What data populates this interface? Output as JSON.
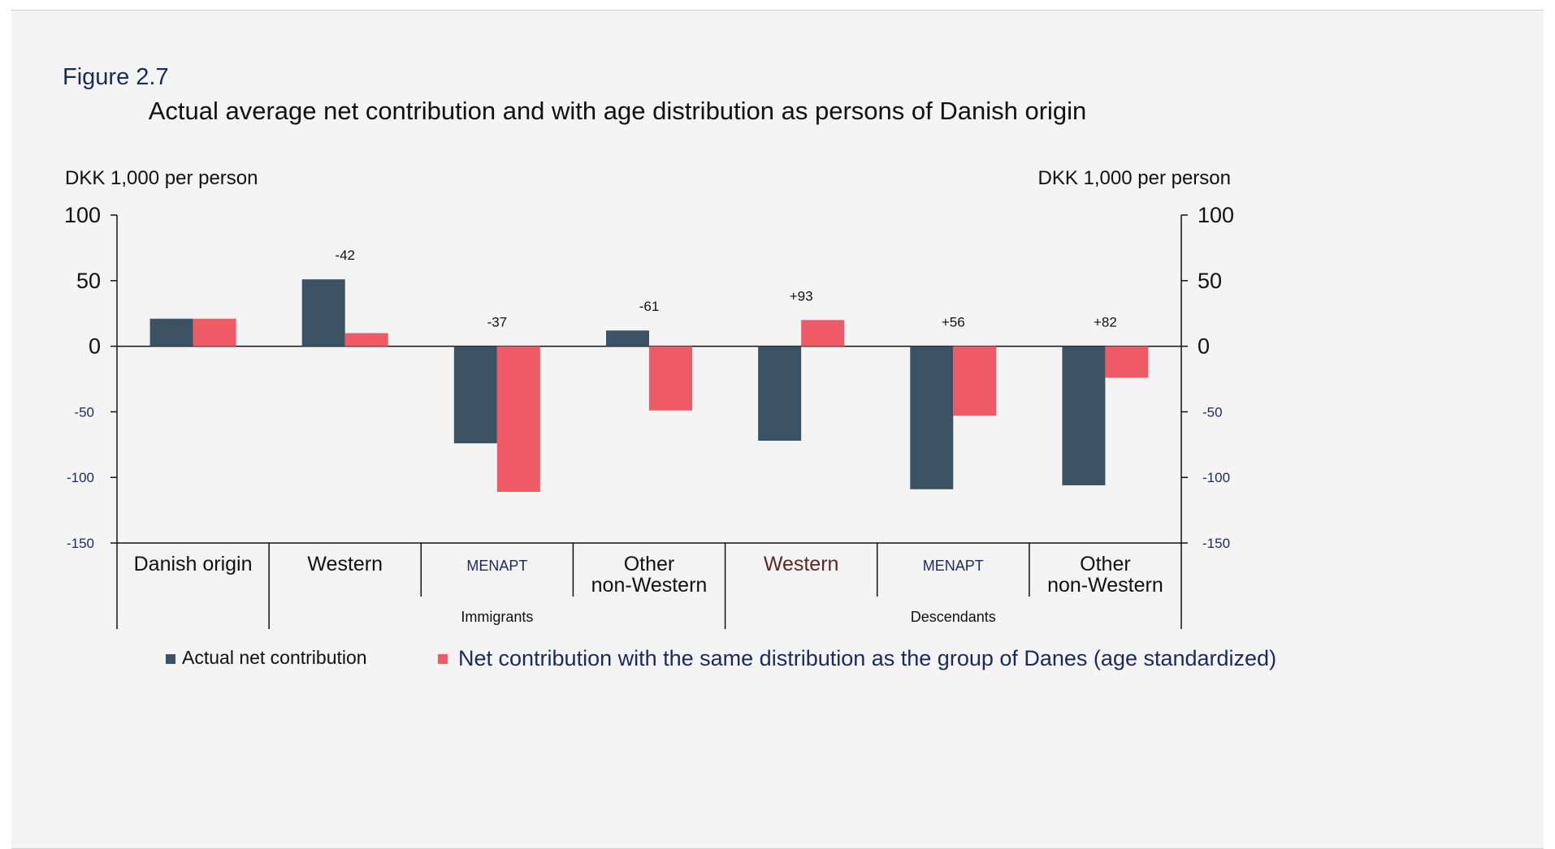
{
  "figure_label": "Figure 2.7",
  "chart_data": {
    "type": "bar",
    "title": "Actual average net contribution and with age distribution as persons of Danish origin",
    "ylabel_left": "DKK 1,000 per person",
    "ylabel_right": "DKK 1,000 per person",
    "ylim": [
      -150,
      100
    ],
    "yticks": [
      100,
      50,
      0,
      -50,
      -100,
      -150
    ],
    "ytick_labels": [
      "100",
      "50",
      "0",
      "-50",
      "-100",
      "-150"
    ],
    "grid": false,
    "legend_position": "bottom",
    "categories": [
      "Danish origin",
      "Western",
      "MENAPT",
      "Other non-Western",
      "Western",
      "MENAPT",
      "Other non-Western"
    ],
    "category_lines": [
      [
        "Danish origin"
      ],
      [
        "Western"
      ],
      [
        "MENAPT"
      ],
      [
        "Other",
        "non-Western"
      ],
      [
        "Western"
      ],
      [
        "MENAPT"
      ],
      [
        "Other",
        "non-Western"
      ]
    ],
    "groups": [
      {
        "label": "Immigrants",
        "categories": [
          1,
          2,
          3
        ]
      },
      {
        "label": "Descendants",
        "categories": [
          4,
          5,
          6
        ]
      }
    ],
    "series": [
      {
        "name": "Actual net contribution",
        "color": "#3b5264",
        "values": [
          21,
          51,
          -74,
          12,
          -72,
          -109,
          -106
        ]
      },
      {
        "name": "Net contribution with the same distribution as the group of Danes (age standardized)",
        "color": "#ee5b66",
        "values": [
          21,
          10,
          -111,
          -49,
          20,
          -53,
          -24
        ]
      }
    ],
    "annotations": [
      "",
      "-42",
      "-37",
      "-61",
      "+93",
      "+56",
      "+82"
    ]
  }
}
